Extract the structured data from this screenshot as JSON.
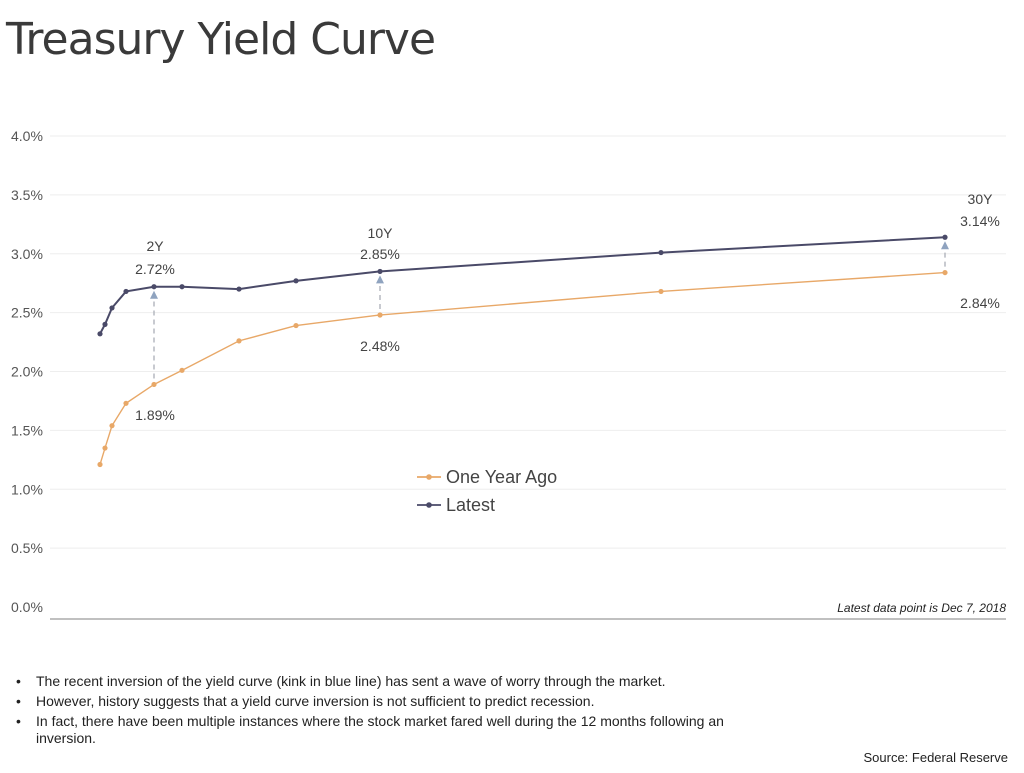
{
  "title": "Treasury Yield Curve",
  "chart_data": {
    "type": "line",
    "ylim": [
      0.0,
      4.0
    ],
    "yticks": [
      "4.0%",
      "3.5%",
      "3.0%",
      "2.5%",
      "2.0%",
      "1.5%",
      "1.0%",
      "0.5%",
      "0.0%"
    ],
    "ytick_values": [
      4.0,
      3.5,
      3.0,
      2.5,
      2.0,
      1.5,
      1.0,
      0.5,
      0.0
    ],
    "x_maturity_years": [
      0.083,
      0.25,
      0.5,
      1,
      2,
      3,
      5,
      7,
      10,
      20,
      30
    ],
    "series": [
      {
        "name": "One Year Ago",
        "color": "#e8a868",
        "values": [
          1.21,
          1.35,
          1.54,
          1.73,
          1.89,
          2.01,
          2.26,
          2.39,
          2.48,
          2.68,
          2.84
        ]
      },
      {
        "name": "Latest",
        "color": "#4a4a68",
        "values": [
          2.32,
          2.4,
          2.54,
          2.68,
          2.72,
          2.72,
          2.7,
          2.77,
          2.85,
          3.01,
          3.14
        ]
      }
    ],
    "annotations": [
      {
        "tenor": "2Y",
        "latest": "2.72%",
        "year_ago": "1.89%"
      },
      {
        "tenor": "10Y",
        "latest": "2.85%",
        "year_ago": "2.48%"
      },
      {
        "tenor": "30Y",
        "latest": "3.14%",
        "year_ago": "2.84%"
      }
    ],
    "grid": true,
    "legend_position": "center",
    "note": "Latest data point is Dec 7, 2018"
  },
  "bullets": [
    "The recent inversion of the yield curve (kink in blue line) has sent a wave of worry through the market.",
    "However, history suggests that a yield curve inversion is not sufficient to predict recession.",
    "In fact, there have been multiple instances where the stock market fared well during the 12 months following an inversion."
  ],
  "source": "Source: Federal Reserve"
}
